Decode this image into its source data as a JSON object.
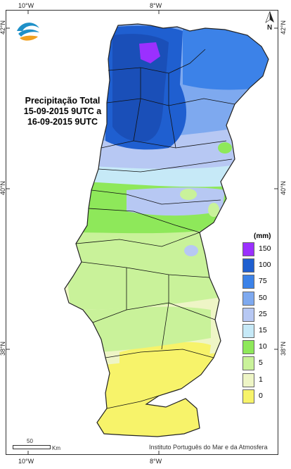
{
  "title": {
    "line1": "Precipitação Total",
    "line2": "15-09-2015 9UTC a",
    "line3": "16-09-2015 9UTC"
  },
  "axes": {
    "top": [
      "10°W",
      "8°W"
    ],
    "bottom": [
      "10°W",
      "8°W"
    ],
    "left": [
      "42°N",
      "40°N",
      "38°N"
    ],
    "right": [
      "42°N",
      "40°N",
      "38°N"
    ]
  },
  "legend": {
    "unit": "(mm)",
    "classes": [
      {
        "label": "150",
        "color": "#9b30ff"
      },
      {
        "label": "100",
        "color": "#1f5fd0"
      },
      {
        "label": "75",
        "color": "#3c82e8"
      },
      {
        "label": "50",
        "color": "#7ea9ef"
      },
      {
        "label": "25",
        "color": "#b7c8f3"
      },
      {
        "label": "15",
        "color": "#c6e9f7"
      },
      {
        "label": "10",
        "color": "#8ee85a"
      },
      {
        "label": "5",
        "color": "#c9f29a"
      },
      {
        "label": "1",
        "color": "#eef5c6"
      },
      {
        "label": "0",
        "color": "#f7f36a"
      }
    ]
  },
  "scale": {
    "value": "50",
    "unit": "Km"
  },
  "north_label": "N",
  "credit": "Instituto Português do Mar e da Atmosfera",
  "logo_icon": "ipma-wave-logo-icon"
}
